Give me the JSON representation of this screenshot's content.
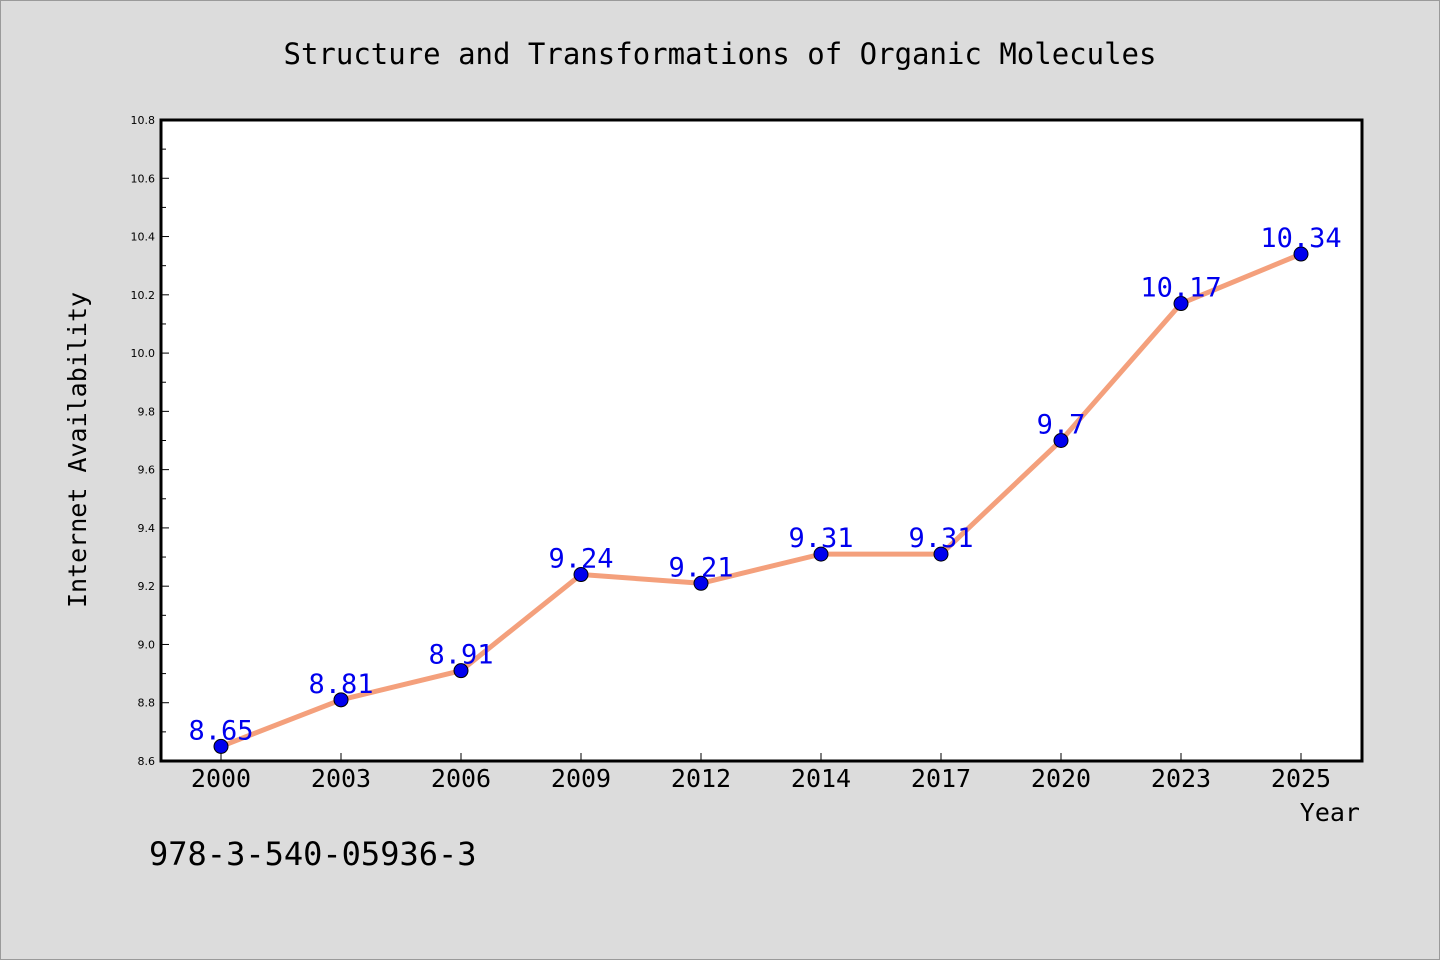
{
  "chart_data": {
    "type": "line",
    "title": "Structure and Transformations of Organic Molecules",
    "xlabel": "Year",
    "ylabel": "Internet Availability",
    "categories": [
      "2000",
      "2003",
      "2006",
      "2009",
      "2012",
      "2014",
      "2017",
      "2020",
      "2023",
      "2025"
    ],
    "series": [
      {
        "values": [
          8.65,
          8.81,
          8.91,
          9.24,
          9.21,
          9.31,
          9.31,
          9.7,
          10.17,
          10.34
        ],
        "data_labels": [
          "8.65",
          "8.81",
          "8.91",
          "9.24",
          "9.21",
          "9.31",
          "9.31",
          "9.7",
          "10.17",
          "10.34"
        ],
        "line_color": "#f4a07c",
        "marker_color": "#0000ee",
        "label_color": "#0000ee"
      }
    ],
    "ylim": [
      8.6,
      10.8
    ],
    "yticks": [
      "8.6",
      "8.8",
      "9.0",
      "9.2",
      "9.4",
      "9.6",
      "9.8",
      "10.0",
      "10.2",
      "10.4",
      "10.6",
      "10.8"
    ],
    "grid": false,
    "legend": "none"
  },
  "footer": {
    "isbn": "978-3-540-05936-3"
  },
  "colors": {
    "figure_background": "#dcdcdc",
    "plot_background": "#ffffff",
    "axes_frame": "#000000"
  }
}
